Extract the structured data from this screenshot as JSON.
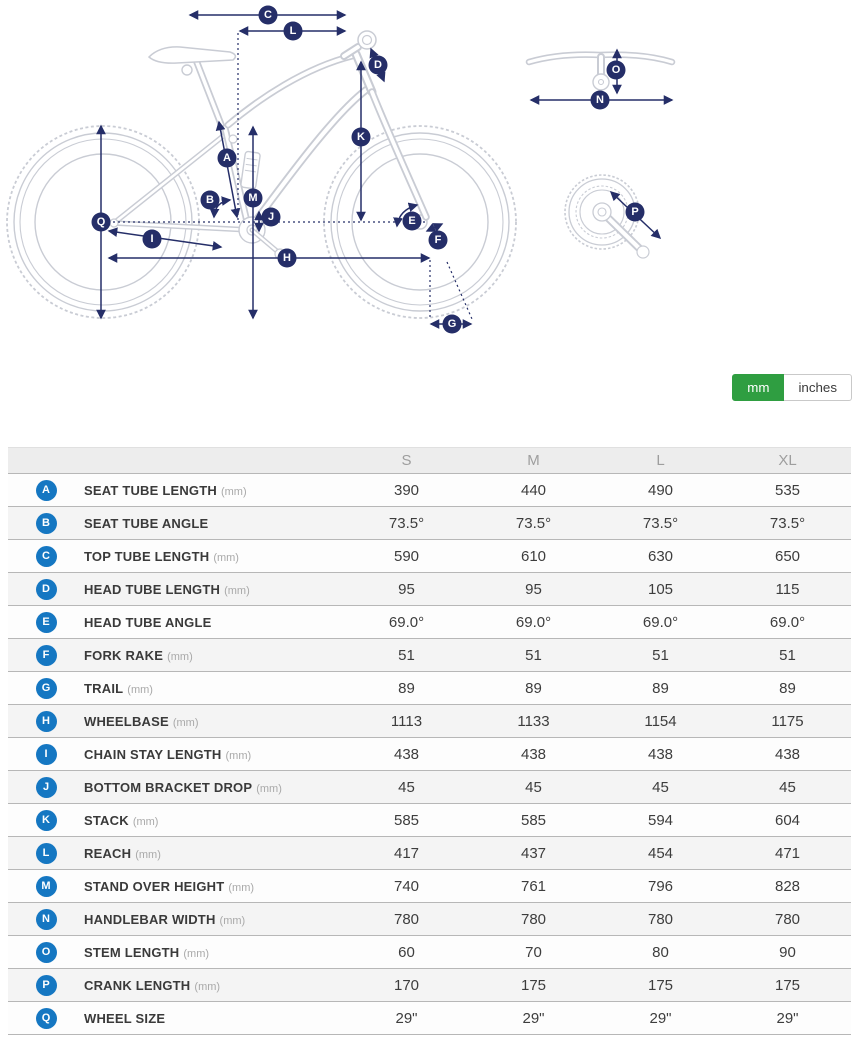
{
  "colors": {
    "accent_green": "#2f9e41",
    "badge_blue": "#1577c2",
    "diagram_navy": "#252e68",
    "bike_outline_gray": "#c9ccd4"
  },
  "diagram": {
    "markers": {
      "A": "A",
      "B": "B",
      "C": "C",
      "D": "D",
      "E": "E",
      "F": "F",
      "G": "G",
      "H": "H",
      "I": "I",
      "J": "J",
      "K": "K",
      "L": "L",
      "M": "M",
      "N": "N",
      "O": "O",
      "P": "P",
      "Q": "Q"
    }
  },
  "units_toggle": {
    "options": [
      {
        "label": "mm",
        "selected": true
      },
      {
        "label": "inches",
        "selected": false
      }
    ]
  },
  "table": {
    "columns": [
      "S",
      "M",
      "L",
      "XL"
    ],
    "rows": [
      {
        "key": "A",
        "label": "SEAT TUBE LENGTH",
        "unit": "(mm)",
        "values": [
          "390",
          "440",
          "490",
          "535"
        ]
      },
      {
        "key": "B",
        "label": "SEAT TUBE ANGLE",
        "unit": "",
        "values": [
          "73.5°",
          "73.5°",
          "73.5°",
          "73.5°"
        ]
      },
      {
        "key": "C",
        "label": "TOP TUBE LENGTH",
        "unit": "(mm)",
        "values": [
          "590",
          "610",
          "630",
          "650"
        ]
      },
      {
        "key": "D",
        "label": "HEAD TUBE LENGTH",
        "unit": "(mm)",
        "values": [
          "95",
          "95",
          "105",
          "115"
        ]
      },
      {
        "key": "E",
        "label": "HEAD TUBE ANGLE",
        "unit": "",
        "values": [
          "69.0°",
          "69.0°",
          "69.0°",
          "69.0°"
        ]
      },
      {
        "key": "F",
        "label": "FORK RAKE",
        "unit": "(mm)",
        "values": [
          "51",
          "51",
          "51",
          "51"
        ]
      },
      {
        "key": "G",
        "label": "TRAIL",
        "unit": "(mm)",
        "values": [
          "89",
          "89",
          "89",
          "89"
        ]
      },
      {
        "key": "H",
        "label": "WHEELBASE",
        "unit": "(mm)",
        "values": [
          "1113",
          "1133",
          "1154",
          "1175"
        ]
      },
      {
        "key": "I",
        "label": "CHAIN STAY LENGTH",
        "unit": "(mm)",
        "values": [
          "438",
          "438",
          "438",
          "438"
        ]
      },
      {
        "key": "J",
        "label": "BOTTOM BRACKET DROP",
        "unit": "(mm)",
        "values": [
          "45",
          "45",
          "45",
          "45"
        ]
      },
      {
        "key": "K",
        "label": "STACK",
        "unit": "(mm)",
        "values": [
          "585",
          "585",
          "594",
          "604"
        ]
      },
      {
        "key": "L",
        "label": "REACH",
        "unit": "(mm)",
        "values": [
          "417",
          "437",
          "454",
          "471"
        ]
      },
      {
        "key": "M",
        "label": "STAND OVER HEIGHT",
        "unit": "(mm)",
        "values": [
          "740",
          "761",
          "796",
          "828"
        ]
      },
      {
        "key": "N",
        "label": "HANDLEBAR WIDTH",
        "unit": "(mm)",
        "values": [
          "780",
          "780",
          "780",
          "780"
        ]
      },
      {
        "key": "O",
        "label": "STEM LENGTH",
        "unit": "(mm)",
        "values": [
          "60",
          "70",
          "80",
          "90"
        ]
      },
      {
        "key": "P",
        "label": "CRANK LENGTH",
        "unit": "(mm)",
        "values": [
          "170",
          "175",
          "175",
          "175"
        ]
      },
      {
        "key": "Q",
        "label": "WHEEL SIZE",
        "unit": "",
        "values": [
          "29\"",
          "29\"",
          "29\"",
          "29\""
        ]
      }
    ]
  }
}
